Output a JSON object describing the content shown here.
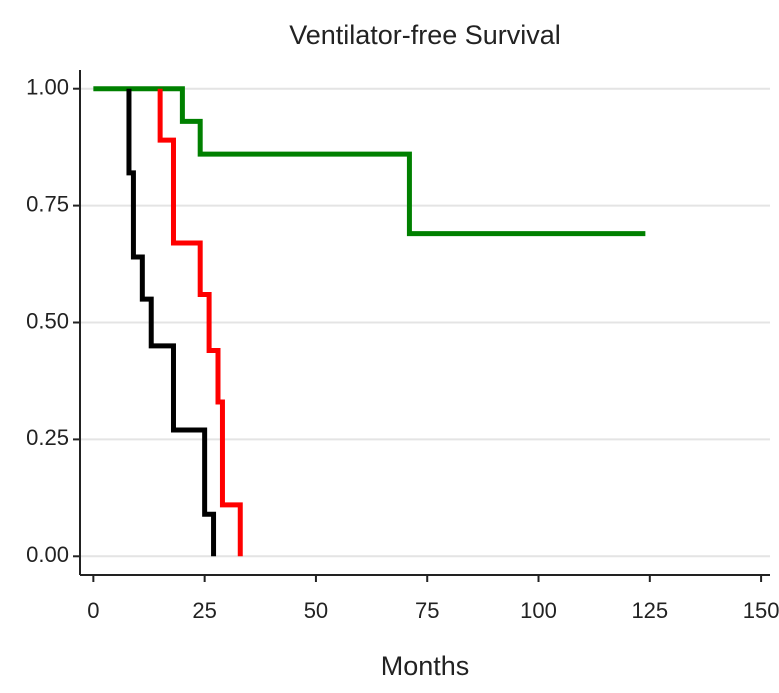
{
  "chart_data": {
    "type": "step",
    "title": "Ventilator-free Survival",
    "x_label": "Months",
    "series": [
      {
        "color": "#008000",
        "x": [
          0,
          20,
          24,
          71,
          124
        ],
        "values": [
          1,
          0.93,
          0.86,
          0.69,
          0.69
        ]
      },
      {
        "color": "#ff0000",
        "x": [
          15,
          15,
          18,
          24,
          26,
          28,
          29,
          33
        ],
        "values": [
          1,
          0.89,
          0.67,
          0.56,
          0.44,
          0.33,
          0.11,
          0
        ]
      },
      {
        "color": "#000000",
        "x": [
          8,
          8,
          9,
          11,
          13,
          18,
          25,
          27
        ],
        "values": [
          1,
          0.82,
          0.64,
          0.55,
          0.45,
          0.27,
          0.09,
          0
        ]
      }
    ],
    "xlim": [
      -3,
      152
    ],
    "ylim": [
      -0.04,
      1.04
    ],
    "xticks": [
      0,
      25,
      50,
      75,
      100,
      125,
      150
    ],
    "yticks": [
      {
        "value": 0,
        "label": "0.00"
      },
      {
        "value": 0.25,
        "label": "0.25"
      },
      {
        "value": 0.5,
        "label": "0.50"
      },
      {
        "value": 0.75,
        "label": "0.75"
      },
      {
        "value": 1,
        "label": "1.00"
      }
    ],
    "grid": true
  }
}
